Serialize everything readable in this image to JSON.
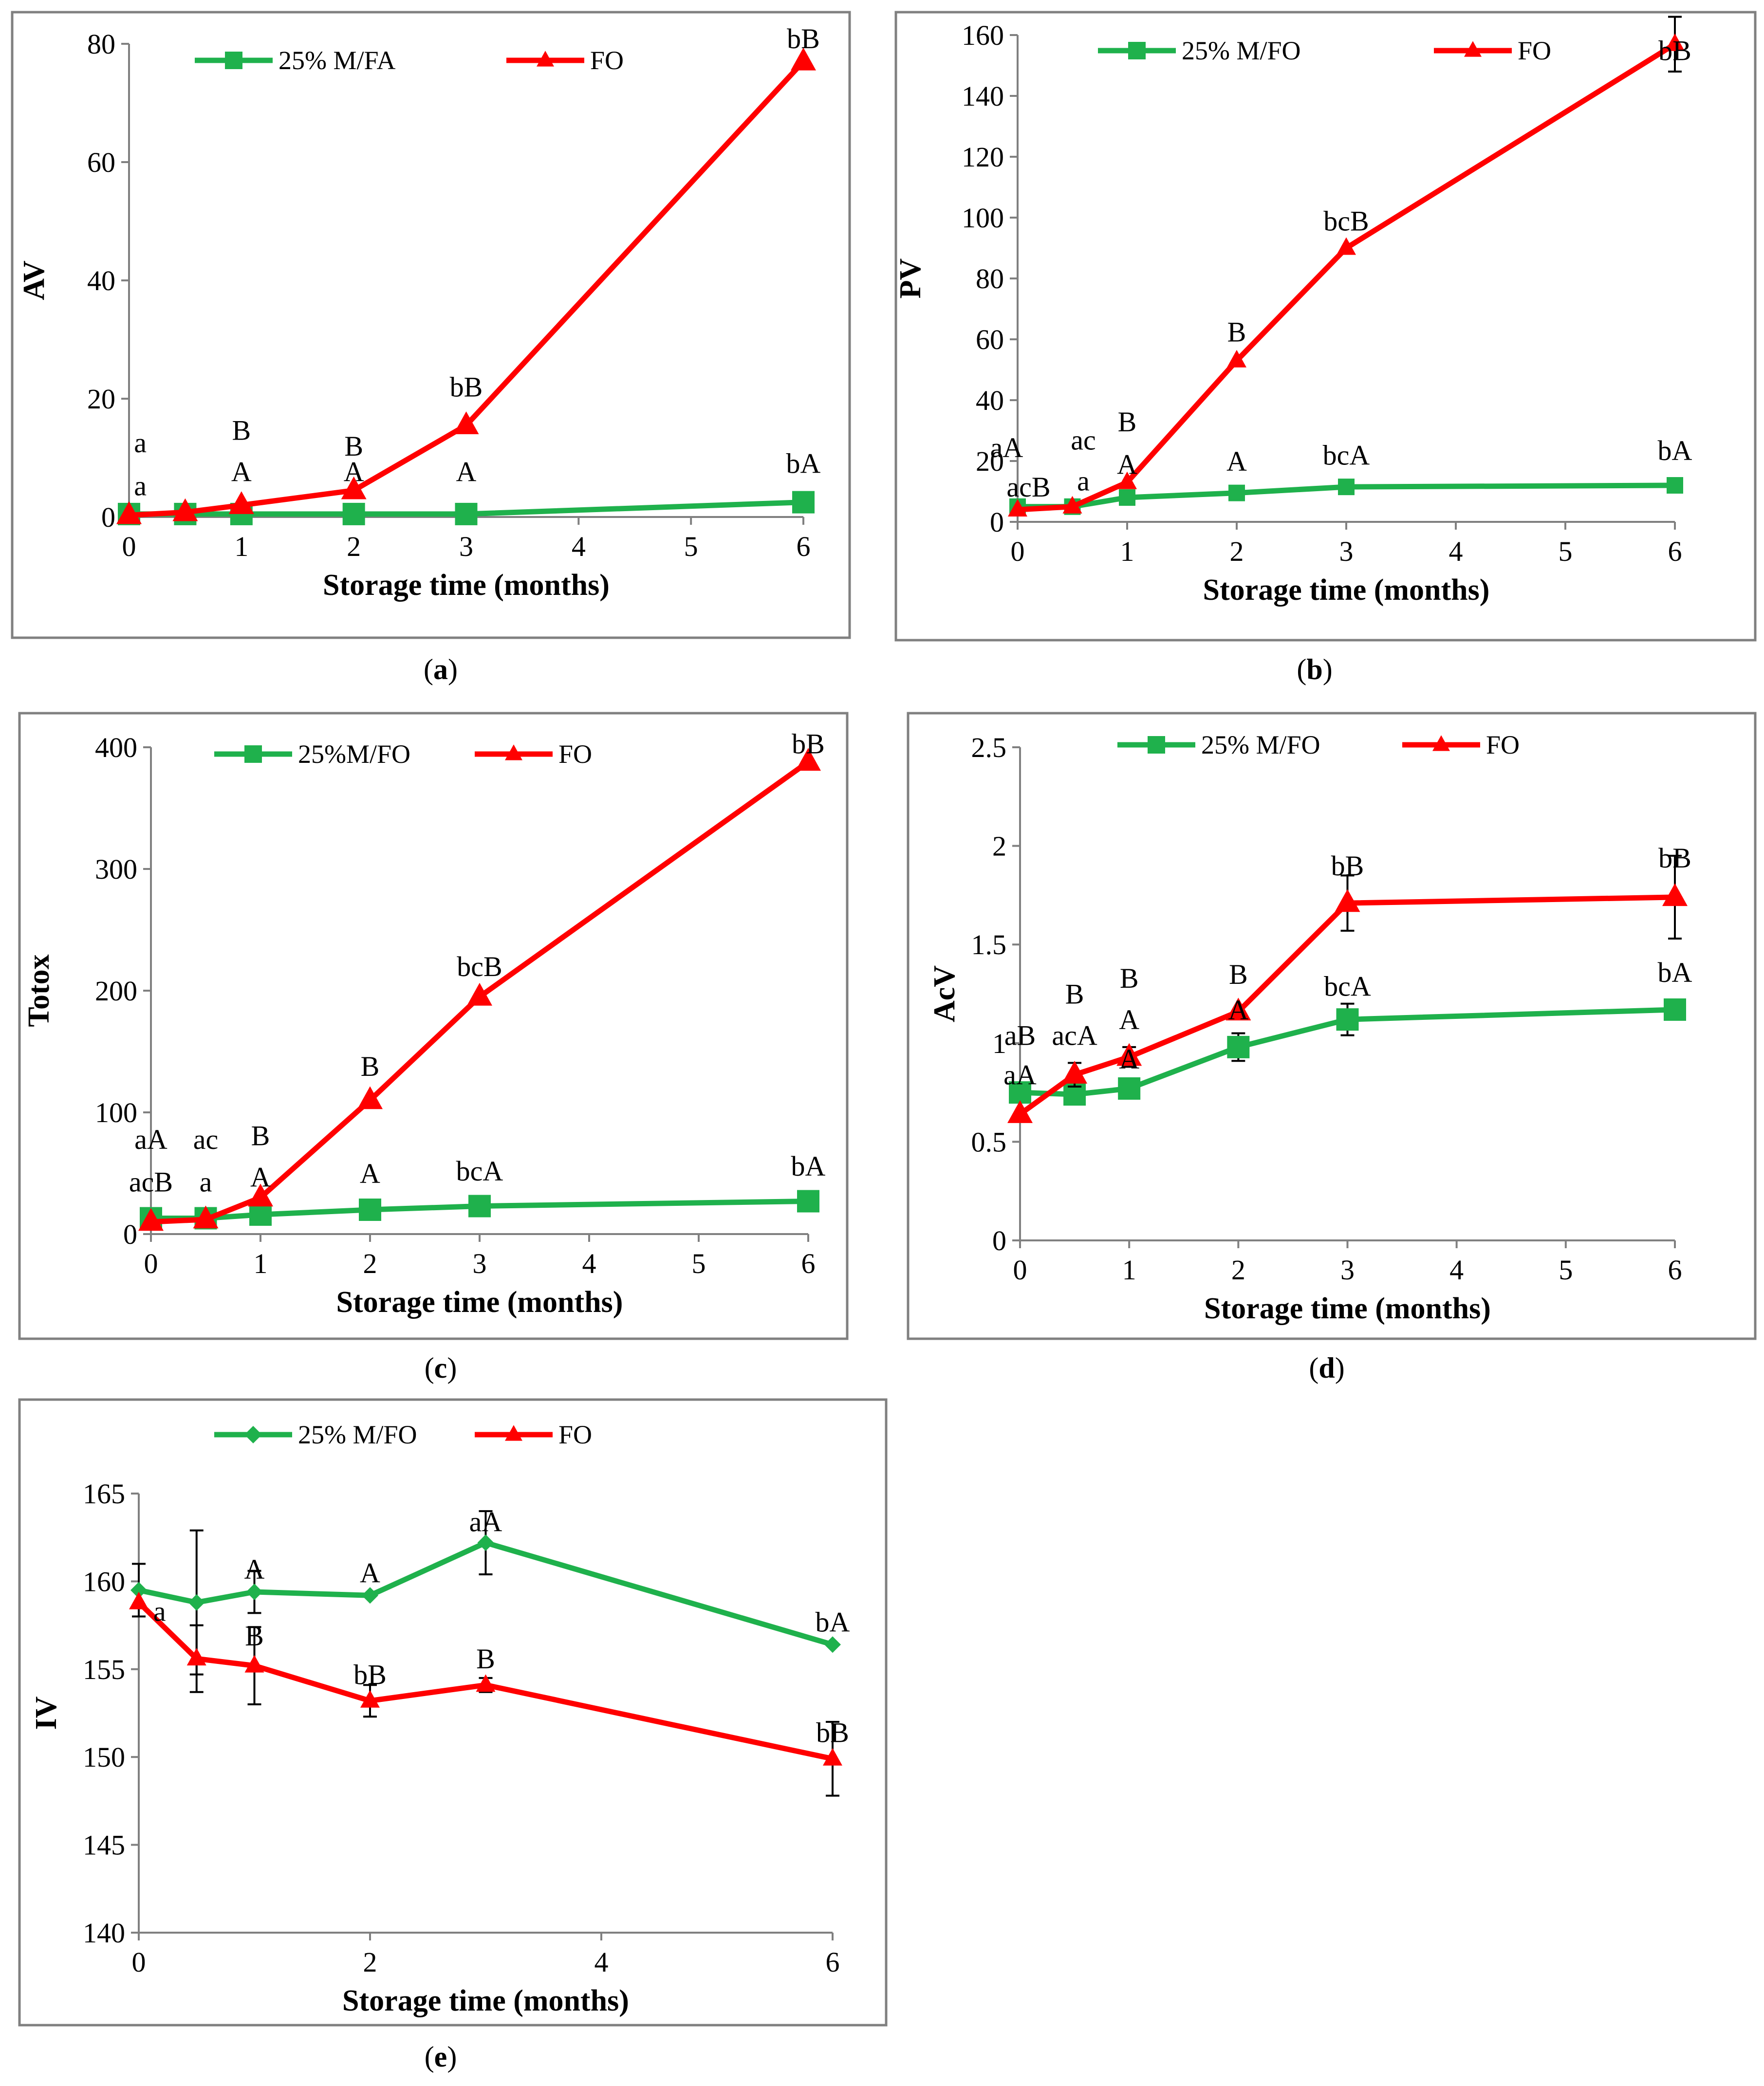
{
  "figure": {
    "colors": {
      "green": "#1fb14c",
      "red": "#ff0000",
      "frame": "#808080"
    },
    "x_axis_label": "Storage time (months)"
  },
  "chart_data": [
    {
      "id": "a",
      "type": "line",
      "caption": "(a)",
      "ylabel": "AV",
      "xlabel": "Storage time (months)",
      "xlim": [
        0,
        6
      ],
      "ylim": [
        0,
        80
      ],
      "xticks": [
        0,
        1,
        2,
        3,
        4,
        5,
        6
      ],
      "yticks": [
        0,
        20,
        40,
        60,
        80
      ],
      "legend": [
        "25% M/FA",
        "FO"
      ],
      "series": [
        {
          "name": "25% M/FA",
          "color": "#1fb14c",
          "marker": "square",
          "x": [
            0,
            0.5,
            1,
            2,
            3,
            6
          ],
          "y": [
            0.5,
            0.5,
            0.5,
            0.5,
            0.5,
            2.5
          ]
        },
        {
          "name": "FO",
          "color": "#ff0000",
          "marker": "triangle",
          "x": [
            0,
            0.5,
            1,
            2,
            3,
            6
          ],
          "y": [
            0.3,
            0.8,
            2,
            4.5,
            15.5,
            77
          ]
        }
      ],
      "annotations": [
        {
          "text": "a",
          "x": 0.1,
          "y": 12.6
        },
        {
          "text": "a",
          "x": 0.1,
          "y": 5.3
        },
        {
          "text": "B",
          "x": 1,
          "y": 14.7
        },
        {
          "text": "A",
          "x": 1,
          "y": 7.7
        },
        {
          "text": "B",
          "x": 2,
          "y": 12
        },
        {
          "text": "A",
          "x": 2,
          "y": 7.7
        },
        {
          "text": "bB",
          "x": 3,
          "y": 22
        },
        {
          "text": "A",
          "x": 3,
          "y": 7.7
        },
        {
          "text": "bB",
          "x": 6,
          "y": 80.9
        },
        {
          "text": "bA",
          "x": 6,
          "y": 9.1
        }
      ]
    },
    {
      "id": "b",
      "type": "line",
      "caption": "(b)",
      "ylabel": "PV",
      "xlabel": "Storage time (months)",
      "xlim": [
        0,
        6
      ],
      "ylim": [
        0,
        160
      ],
      "xticks": [
        0,
        1,
        2,
        3,
        4,
        5,
        6
      ],
      "yticks": [
        0,
        20,
        40,
        60,
        80,
        100,
        120,
        140,
        160
      ],
      "legend": [
        "25% M/FO",
        "FO"
      ],
      "series": [
        {
          "name": "25% M/FO",
          "color": "#1fb14c",
          "marker": "square",
          "x": [
            0,
            0.5,
            1,
            2,
            3,
            6
          ],
          "y": [
            5,
            5,
            8,
            9.5,
            11.5,
            12
          ]
        },
        {
          "name": "FO",
          "color": "#ff0000",
          "marker": "triangle",
          "x": [
            0,
            0.5,
            1,
            2,
            3,
            6
          ],
          "y": [
            4,
            5,
            13,
            53,
            90,
            157
          ],
          "err": [
            0,
            0,
            0,
            0,
            0,
            9
          ]
        }
      ],
      "annotations": [
        {
          "text": "aA",
          "x": -0.1,
          "y": 24.5
        },
        {
          "text": "acB",
          "x": 0.1,
          "y": 11.5
        },
        {
          "text": "ac",
          "x": 0.6,
          "y": 27
        },
        {
          "text": "a",
          "x": 0.6,
          "y": 13.5
        },
        {
          "text": "B",
          "x": 1,
          "y": 33
        },
        {
          "text": "A",
          "x": 1,
          "y": 19
        },
        {
          "text": "B",
          "x": 2,
          "y": 62.5
        },
        {
          "text": "A",
          "x": 2,
          "y": 20
        },
        {
          "text": "bcB",
          "x": 3,
          "y": 99
        },
        {
          "text": "bcA",
          "x": 3,
          "y": 22
        },
        {
          "text": "bB",
          "x": 6,
          "y": 155
        },
        {
          "text": "bA",
          "x": 6,
          "y": 23.5
        }
      ]
    },
    {
      "id": "c",
      "type": "line",
      "caption": "(c)",
      "ylabel": "Totox",
      "xlabel": "Storage time (months)",
      "xlim": [
        0,
        6
      ],
      "ylim": [
        0,
        400
      ],
      "xticks": [
        0,
        1,
        2,
        3,
        4,
        5,
        6
      ],
      "yticks": [
        0,
        100,
        200,
        300,
        400
      ],
      "legend": [
        "25%M/FO",
        "FO"
      ],
      "series": [
        {
          "name": "25%M/FO",
          "color": "#1fb14c",
          "marker": "square",
          "x": [
            0,
            0.5,
            1,
            2,
            3,
            6
          ],
          "y": [
            13,
            13,
            16,
            20,
            23,
            27
          ]
        },
        {
          "name": "FO",
          "color": "#ff0000",
          "marker": "triangle",
          "x": [
            0,
            0.5,
            1,
            2,
            3,
            6
          ],
          "y": [
            10,
            12,
            30,
            110,
            195,
            388
          ]
        }
      ],
      "annotations": [
        {
          "text": "aA",
          "x": 0,
          "y": 78
        },
        {
          "text": "acB",
          "x": 0,
          "y": 43
        },
        {
          "text": "ac",
          "x": 0.5,
          "y": 78
        },
        {
          "text": "a",
          "x": 0.5,
          "y": 43
        },
        {
          "text": "B",
          "x": 1,
          "y": 81
        },
        {
          "text": "A",
          "x": 1,
          "y": 47
        },
        {
          "text": "B",
          "x": 2,
          "y": 138
        },
        {
          "text": "A",
          "x": 2,
          "y": 50
        },
        {
          "text": "bcB",
          "x": 3,
          "y": 220
        },
        {
          "text": "bcA",
          "x": 3,
          "y": 52
        },
        {
          "text": "bB",
          "x": 6,
          "y": 403
        },
        {
          "text": "bA",
          "x": 6,
          "y": 56
        }
      ]
    },
    {
      "id": "d",
      "type": "line",
      "caption": "(d)",
      "ylabel": "AcV",
      "xlabel": "Storage time (months)",
      "xlim": [
        0,
        6
      ],
      "ylim": [
        0,
        2.5
      ],
      "xticks": [
        0,
        1,
        2,
        3,
        4,
        5,
        6
      ],
      "yticks": [
        0,
        0.5,
        1,
        1.5,
        2,
        2.5
      ],
      "legend": [
        "25% M/FO",
        "FO"
      ],
      "series": [
        {
          "name": "25% M/FO",
          "color": "#1fb14c",
          "marker": "square",
          "x": [
            0,
            0.5,
            1,
            2,
            3,
            6
          ],
          "y": [
            0.75,
            0.74,
            0.77,
            0.98,
            1.12,
            1.17
          ],
          "err": [
            0,
            0,
            0,
            0.07,
            0.08,
            0
          ]
        },
        {
          "name": "FO",
          "color": "#ff0000",
          "marker": "triangle",
          "x": [
            0,
            0.5,
            1,
            2,
            3,
            6
          ],
          "y": [
            0.64,
            0.84,
            0.93,
            1.16,
            1.71,
            1.74
          ],
          "err": [
            0,
            0.06,
            0.05,
            0,
            0.14,
            0.21
          ]
        }
      ],
      "annotations": [
        {
          "text": "aB",
          "x": 0,
          "y": 1.04
        },
        {
          "text": "aA",
          "x": 0,
          "y": 0.84
        },
        {
          "text": "B",
          "x": 0.5,
          "y": 1.25
        },
        {
          "text": "acA",
          "x": 0.5,
          "y": 1.04
        },
        {
          "text": "B",
          "x": 1,
          "y": 1.33
        },
        {
          "text": "A",
          "x": 1,
          "y": 1.12
        },
        {
          "text": "A",
          "x": 1,
          "y": 0.92
        },
        {
          "text": "B",
          "x": 2,
          "y": 1.35
        },
        {
          "text": "A",
          "x": 2,
          "y": 1.17
        },
        {
          "text": "bB",
          "x": 3,
          "y": 1.9
        },
        {
          "text": "bcA",
          "x": 3,
          "y": 1.29
        },
        {
          "text": "bB",
          "x": 6,
          "y": 1.94
        },
        {
          "text": "bA",
          "x": 6,
          "y": 1.36
        }
      ]
    },
    {
      "id": "e",
      "type": "line",
      "caption": "(e)",
      "ylabel": "IV",
      "xlabel": "Storage time (months)",
      "xlim": [
        0,
        6
      ],
      "ylim": [
        140,
        165
      ],
      "xticks": [
        0,
        2,
        4,
        6
      ],
      "yticks": [
        140,
        145,
        150,
        155,
        160,
        165
      ],
      "legend": [
        "25% M/FO",
        "FO"
      ],
      "series": [
        {
          "name": "25% M/FO",
          "color": "#1fb14c",
          "marker": "diamond",
          "x": [
            0,
            0.5,
            1,
            2,
            3,
            6
          ],
          "y": [
            159.5,
            158.8,
            159.4,
            159.2,
            162.2,
            156.4
          ],
          "err": [
            1.5,
            4.1,
            1.2,
            0,
            1.8,
            0
          ]
        },
        {
          "name": "FO",
          "color": "#ff0000",
          "marker": "triangle",
          "x": [
            0,
            0.5,
            1,
            2,
            3,
            6
          ],
          "y": [
            158.8,
            155.6,
            155.2,
            153.2,
            154.1,
            149.9
          ],
          "err": [
            0,
            1.9,
            2.2,
            0.9,
            0.4,
            2.1
          ]
        }
      ],
      "annotations": [
        {
          "text": "a",
          "x": 0.18,
          "y": 158.3
        },
        {
          "text": "A",
          "x": 1,
          "y": 160.7
        },
        {
          "text": "B",
          "x": 1,
          "y": 156.9
        },
        {
          "text": "A",
          "x": 2,
          "y": 160.5
        },
        {
          "text": "bB",
          "x": 2,
          "y": 154.7
        },
        {
          "text": "aA",
          "x": 3,
          "y": 163.4
        },
        {
          "text": "B",
          "x": 3,
          "y": 155.6
        },
        {
          "text": "bA",
          "x": 6,
          "y": 157.7
        },
        {
          "text": "bB",
          "x": 6,
          "y": 151.4
        }
      ]
    }
  ]
}
